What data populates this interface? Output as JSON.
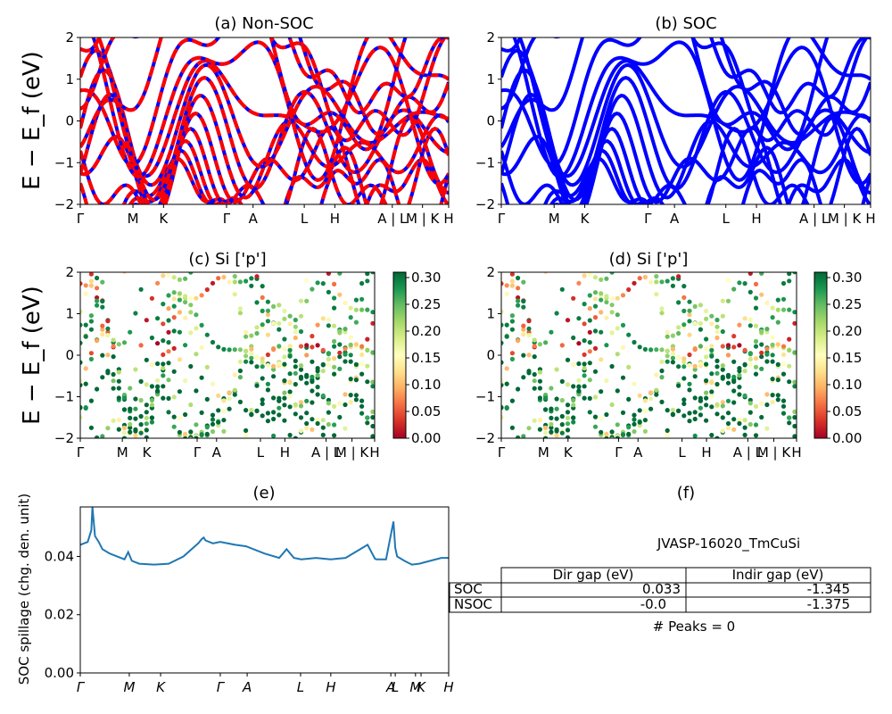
{
  "chart_data": [
    {
      "id": "a",
      "type": "line",
      "title": "(a) Non-SOC",
      "ylabel": "E − E_f (eV)",
      "ylim": [
        -2,
        2
      ],
      "yticks": [
        "2",
        "1",
        "0",
        "−1",
        "−2"
      ],
      "xticks": [
        "Γ",
        "M",
        "K",
        "Γ",
        "A",
        "L",
        "H",
        "A | L",
        "M | K",
        "H"
      ],
      "series_colors": [
        "#0000ff",
        "#ff0000"
      ],
      "style": "dashed-overlay"
    },
    {
      "id": "b",
      "type": "line",
      "title": "(b) SOC",
      "ylim": [
        -2,
        2
      ],
      "yticks": [
        "2",
        "1",
        "0",
        "−1",
        "−2"
      ],
      "xticks": [
        "Γ",
        "M",
        "K",
        "Γ",
        "A",
        "L",
        "H",
        "A | L",
        "M | K",
        "H"
      ],
      "series_colors": [
        "#0000ff"
      ]
    },
    {
      "id": "c",
      "type": "scatter",
      "title": "(c)  Si ['p']",
      "ylabel": "E − E_f (eV)",
      "ylim": [
        -2,
        2
      ],
      "yticks": [
        "2",
        "1",
        "0",
        "−1",
        "−2"
      ],
      "xticks": [
        "Γ",
        "M",
        "K",
        "Γ",
        "A",
        "L",
        "H",
        "A | L",
        "M | K",
        "H"
      ],
      "colorbar": {
        "min": 0.0,
        "max": 0.31,
        "ticks": [
          "0.30",
          "0.25",
          "0.20",
          "0.15",
          "0.10",
          "0.05",
          "0.00"
        ],
        "colormap": "RdYlGn"
      }
    },
    {
      "id": "d",
      "type": "scatter",
      "title": "(d) Si ['p']",
      "ylim": [
        -2,
        2
      ],
      "yticks": [
        "2",
        "1",
        "0",
        "−1",
        "−2"
      ],
      "xticks": [
        "Γ",
        "M",
        "K",
        "Γ",
        "A",
        "L",
        "H",
        "A | L",
        "M | K",
        "H"
      ],
      "colorbar": {
        "min": 0.0,
        "max": 0.31,
        "ticks": [
          "0.30",
          "0.25",
          "0.20",
          "0.15",
          "0.10",
          "0.05",
          "0.00"
        ],
        "colormap": "RdYlGn"
      }
    },
    {
      "id": "e",
      "type": "line",
      "title": "(e)",
      "ylabel": "SOC spillage (chg. den. unit)",
      "ylim": [
        0,
        0.057
      ],
      "yticks": [
        "0.04",
        "0.02",
        "0.00"
      ],
      "xticks": [
        "Γ",
        "M",
        "K",
        "Γ",
        "A",
        "L",
        "H",
        "A",
        "L",
        "M",
        "K",
        "H"
      ],
      "color": "#1f77b4",
      "x": [
        0,
        0.02,
        0.03,
        0.033,
        0.04,
        0.05,
        0.06,
        0.08,
        0.12,
        0.13,
        0.14,
        0.16,
        0.2,
        0.24,
        0.28,
        0.32,
        0.33,
        0.335,
        0.34,
        0.36,
        0.38,
        0.42,
        0.45,
        0.5,
        0.54,
        0.56,
        0.58,
        0.6,
        0.64,
        0.68,
        0.72,
        0.78,
        0.8,
        0.805,
        0.83,
        0.85,
        0.855,
        0.86,
        0.88,
        0.9,
        0.92,
        0.95,
        0.98,
        1.0
      ],
      "y": [
        0.044,
        0.045,
        0.049,
        0.057,
        0.047,
        0.045,
        0.0425,
        0.041,
        0.039,
        0.0415,
        0.0385,
        0.0375,
        0.0372,
        0.0375,
        0.04,
        0.0445,
        0.046,
        0.0465,
        0.0455,
        0.0445,
        0.045,
        0.044,
        0.0435,
        0.041,
        0.0395,
        0.0425,
        0.0395,
        0.039,
        0.0395,
        0.039,
        0.0395,
        0.044,
        0.0392,
        0.039,
        0.039,
        0.052,
        0.043,
        0.04,
        0.0385,
        0.0372,
        0.0375,
        0.0385,
        0.0395,
        0.0395
      ]
    },
    {
      "id": "f",
      "type": "table",
      "title": "(f)",
      "caption": "JVASP-16020_TmCuSi",
      "columns": [
        "Dir gap (eV)",
        "Indir gap (eV)"
      ],
      "rows": [
        {
          "label": "SOC",
          "values": [
            "0.033",
            "-1.345"
          ]
        },
        {
          "label": "NSOC",
          "values": [
            "-0.0",
            "-1.375"
          ]
        }
      ],
      "footer": "# Peaks = 0"
    }
  ]
}
